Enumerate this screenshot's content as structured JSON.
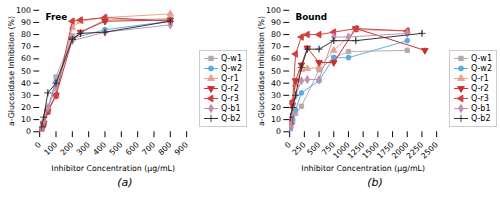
{
  "chart_data": [
    {
      "type": "line",
      "title": "Free",
      "xlabel": "Inhibitor Concentration (μg/mL)",
      "ylabel": "a-Glucosidase Inhibition (%)",
      "xlim": [
        0,
        900
      ],
      "ylim": [
        0,
        100
      ],
      "xticks": [
        0,
        100,
        200,
        300,
        400,
        500,
        600,
        700,
        800,
        900
      ],
      "yticks": [
        0,
        10,
        20,
        30,
        40,
        50,
        60,
        70,
        80,
        90,
        100
      ],
      "annotations": [
        "(a)"
      ],
      "legend": "right",
      "series": [
        {
          "name": "Q-w1",
          "color": "#b8a8a8",
          "marker": "square",
          "line_style": "solid",
          "x": [
            12,
            25,
            50,
            100,
            200,
            400,
            800
          ],
          "values": [
            2,
            5,
            16,
            45,
            79,
            92,
            93
          ],
          "yerr": [
            0.5,
            0.5,
            1.5,
            2,
            1.5,
            1.5,
            1.5
          ]
        },
        {
          "name": "Q-w2",
          "color": "#5aace4",
          "marker": "circle",
          "line_style": "solid",
          "x": [
            12,
            25,
            50,
            100,
            200,
            400,
            800
          ],
          "values": [
            3,
            7,
            20,
            41,
            77,
            84,
            91
          ],
          "yerr": [
            0.5,
            0.5,
            1.5,
            2,
            1.5,
            1.5,
            1.5
          ]
        },
        {
          "name": "Q-r1",
          "color": "#e8a090",
          "marker": "triangle-up",
          "line_style": "solid",
          "x": [
            12,
            25,
            50,
            100,
            200,
            250,
            400,
            800
          ],
          "values": [
            2,
            7,
            17,
            30,
            86,
            91,
            94,
            97
          ],
          "yerr": [
            0.5,
            0.5,
            1.5,
            2,
            2,
            2,
            1.5,
            1.5
          ]
        },
        {
          "name": "Q-r2",
          "color": "#c83030",
          "marker": "triangle-down",
          "line_style": "solid",
          "x": [
            12,
            25,
            50,
            100,
            200,
            250,
            400,
            800
          ],
          "values": [
            2,
            7,
            17,
            30,
            76,
            82,
            91,
            92
          ],
          "yerr": [
            0.5,
            0.5,
            1.5,
            2,
            2,
            2,
            2,
            1.5
          ]
        },
        {
          "name": "Q-r3",
          "color": "#d04040",
          "marker": "triangle-left",
          "line_style": "solid",
          "x": [
            12,
            25,
            50,
            100,
            200,
            250,
            400,
            800
          ],
          "values": [
            2,
            7,
            17,
            30,
            91,
            92,
            94,
            91
          ],
          "yerr": [
            0.5,
            0.5,
            1.5,
            3,
            2,
            2,
            1.5,
            1.5
          ]
        },
        {
          "name": "Q-b1",
          "color": "#c090b0",
          "marker": "diamond",
          "line_style": "solid",
          "x": [
            12,
            25,
            50,
            100,
            200,
            400,
            800
          ],
          "values": [
            3,
            9,
            20,
            37,
            75,
            82,
            88
          ],
          "yerr": [
            0.5,
            0.5,
            1.5,
            2,
            1.5,
            1.5,
            1.5
          ]
        },
        {
          "name": "Q-b2",
          "color": "#303030",
          "marker": "plus",
          "line_style": "solid",
          "x": [
            12,
            25,
            50,
            100,
            200,
            250,
            400,
            800
          ],
          "values": [
            4,
            12,
            32,
            40,
            76,
            81,
            82,
            91
          ],
          "yerr": [
            0.5,
            1,
            2,
            2,
            2,
            2,
            2,
            1.5
          ]
        }
      ]
    },
    {
      "type": "line",
      "title": "Bound",
      "xlabel": "Inhibitor Concentration (μg/mL)",
      "ylabel": "a-Glucosidase Inhibition (%)",
      "xlim": [
        0,
        2500
      ],
      "ylim": [
        0,
        100
      ],
      "xticks": [
        0,
        250,
        500,
        750,
        1000,
        1250,
        1500,
        1750,
        2000,
        2250,
        2500
      ],
      "yticks": [
        0,
        10,
        20,
        30,
        40,
        50,
        60,
        70,
        80,
        90,
        100
      ],
      "annotations": [
        "(b)"
      ],
      "legend": "right",
      "series": [
        {
          "name": "Q-w1",
          "color": "#b8a8a8",
          "marker": "square",
          "line_style": "solid",
          "x": [
            12,
            50,
            100,
            200,
            500,
            750,
            1000,
            2000
          ],
          "values": [
            2,
            8,
            15,
            21,
            51,
            61,
            66,
            67
          ],
          "yerr": [
            0.5,
            1,
            1.5,
            1.5,
            2,
            2,
            2,
            2
          ]
        },
        {
          "name": "Q-w2",
          "color": "#5aace4",
          "marker": "circle",
          "line_style": "solid",
          "x": [
            12,
            50,
            100,
            200,
            500,
            750,
            1000,
            2000
          ],
          "values": [
            3,
            10,
            18,
            32,
            42,
            61,
            61,
            75
          ],
          "yerr": [
            0.5,
            1,
            1.5,
            1.5,
            2,
            2,
            2,
            2
          ]
        },
        {
          "name": "Q-r1",
          "color": "#e8a090",
          "marker": "triangle-up",
          "line_style": "solid",
          "x": [
            12,
            50,
            100,
            200,
            300,
            500,
            750,
            1125,
            2000
          ],
          "values": [
            5,
            21,
            39,
            51,
            52,
            53,
            67,
            84,
            83
          ],
          "yerr": [
            0.5,
            1,
            2,
            2,
            2,
            2,
            2,
            2,
            2
          ]
        },
        {
          "name": "Q-r2",
          "color": "#c83030",
          "marker": "triangle-down",
          "line_style": "solid",
          "x": [
            12,
            50,
            100,
            200,
            300,
            500,
            750,
            1125,
            2300
          ],
          "values": [
            5,
            22,
            42,
            55,
            69,
            57,
            57,
            85,
            67
          ],
          "yerr": [
            0.5,
            1,
            2,
            2,
            2,
            2,
            2,
            2,
            2
          ]
        },
        {
          "name": "Q-r3",
          "color": "#d04040",
          "marker": "triangle-left",
          "line_style": "solid",
          "x": [
            12,
            50,
            100,
            200,
            300,
            500,
            750,
            1125,
            2000
          ],
          "values": [
            9,
            25,
            64,
            78,
            80,
            80,
            82,
            85,
            83
          ],
          "yerr": [
            0.5,
            1,
            2,
            2,
            2,
            2,
            2,
            2,
            2
          ]
        },
        {
          "name": "Q-b1",
          "color": "#c090b0",
          "marker": "diamond",
          "line_style": "solid",
          "x": [
            12,
            50,
            100,
            200,
            300,
            500,
            750,
            1000,
            2000
          ],
          "values": [
            5,
            15,
            30,
            42,
            43,
            43,
            78,
            78,
            81
          ],
          "yerr": [
            0.5,
            1,
            1.5,
            1.5,
            2,
            2,
            2,
            2,
            2
          ]
        },
        {
          "name": "Q-b2",
          "color": "#303030",
          "marker": "plus",
          "line_style": "solid",
          "x": [
            12,
            50,
            100,
            200,
            300,
            500,
            750,
            1125,
            2250
          ],
          "values": [
            12,
            20,
            30,
            53,
            68,
            68,
            75,
            75,
            81
          ],
          "yerr": [
            0.5,
            1,
            2,
            2,
            2,
            2,
            2,
            2,
            2
          ]
        }
      ]
    }
  ]
}
